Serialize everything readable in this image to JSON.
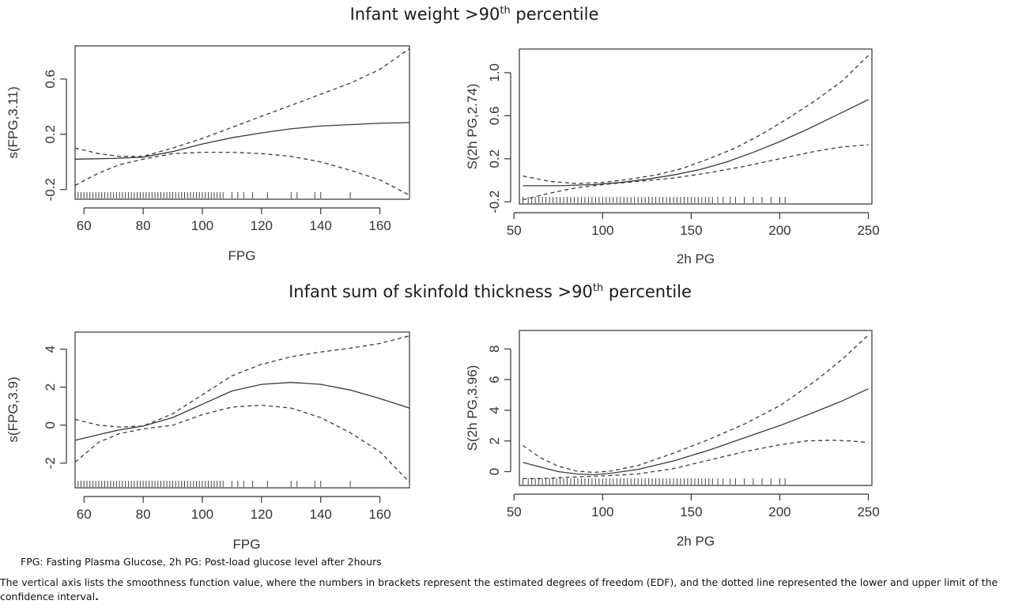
{
  "titles": {
    "top": {
      "text": "Infant weight >90",
      "sup": "th",
      "suffix": " percentile"
    },
    "bottom": {
      "text": "Infant sum of skinfold thickness >90",
      "sup": "th",
      "suffix": " percentile"
    }
  },
  "footnotes": {
    "abbrev": "FPG: Fasting Plasma Glucose,  2h PG: Post-load glucose level after 2hours",
    "explain": "The vertical axis lists the smoothness function value, where the numbers in brackets represent the estimated degrees of freedom (EDF), and the dotted line represented the lower and upper limit of the confidence interval",
    "explain_end": "."
  },
  "chart_data": [
    {
      "id": "p1",
      "type": "line",
      "xlabel": "FPG",
      "ylabel": "s(FPG,3.11)",
      "xlim": [
        57,
        170
      ],
      "ylim": [
        -0.27,
        0.84
      ],
      "xticks": [
        60,
        80,
        100,
        120,
        140,
        160
      ],
      "yticks": [
        -0.2,
        0.2,
        0.6
      ],
      "ytick_labels": [
        "-0.2",
        "0.2",
        "0.6"
      ],
      "series": [
        {
          "style": "solid",
          "x": [
            57,
            70,
            80,
            90,
            100,
            110,
            120,
            130,
            140,
            150,
            160,
            170
          ],
          "y": [
            0.02,
            0.025,
            0.035,
            0.075,
            0.13,
            0.175,
            0.21,
            0.24,
            0.26,
            0.27,
            0.28,
            0.285
          ]
        },
        {
          "style": "dashed",
          "x": [
            57,
            65,
            72,
            80,
            90,
            100,
            110,
            120,
            130,
            140,
            150,
            160,
            170
          ],
          "y": [
            0.1,
            0.06,
            0.04,
            0.04,
            0.1,
            0.17,
            0.25,
            0.33,
            0.41,
            0.49,
            0.57,
            0.67,
            0.82
          ]
        },
        {
          "style": "dashed",
          "x": [
            57,
            65,
            72,
            80,
            90,
            100,
            110,
            120,
            130,
            140,
            150,
            160,
            170
          ],
          "y": [
            -0.17,
            -0.08,
            -0.02,
            0.02,
            0.06,
            0.07,
            0.07,
            0.06,
            0.04,
            0.0,
            -0.06,
            -0.13,
            -0.24
          ]
        }
      ],
      "rug": [
        58,
        59,
        60,
        61,
        62,
        63,
        64,
        65,
        66,
        67,
        68,
        69,
        70,
        71,
        72,
        73,
        74,
        75,
        76,
        77,
        78,
        79,
        80,
        81,
        82,
        83,
        84,
        85,
        86,
        87,
        88,
        89,
        90,
        91,
        92,
        93,
        94,
        95,
        96,
        97,
        98,
        99,
        100,
        101,
        102,
        103,
        104,
        105,
        106,
        107,
        110,
        112,
        114,
        117,
        122,
        130,
        132,
        138,
        140,
        150,
        170
      ]
    },
    {
      "id": "p2",
      "type": "line",
      "xlabel": "2h PG",
      "ylabel": "S(2h PG,2.74)",
      "xlim": [
        53,
        252
      ],
      "ylim": [
        -0.22,
        1.22
      ],
      "xticks": [
        50,
        100,
        150,
        200,
        250
      ],
      "yticks": [
        -0.2,
        0.2,
        0.6,
        1.0
      ],
      "ytick_labels": [
        "-0.2",
        "0.2",
        "0.6",
        "1.0"
      ],
      "series": [
        {
          "style": "solid",
          "x": [
            55,
            75,
            95,
            110,
            125,
            140,
            155,
            170,
            185,
            200,
            215,
            230,
            250
          ],
          "y": [
            -0.05,
            -0.05,
            -0.04,
            -0.02,
            0.01,
            0.05,
            0.1,
            0.17,
            0.26,
            0.36,
            0.47,
            0.59,
            0.75
          ]
        },
        {
          "style": "dashed",
          "x": [
            55,
            70,
            85,
            100,
            115,
            130,
            145,
            160,
            175,
            190,
            205,
            220,
            235,
            250
          ],
          "y": [
            0.04,
            -0.01,
            -0.03,
            -0.02,
            0.01,
            0.05,
            0.11,
            0.2,
            0.3,
            0.43,
            0.58,
            0.74,
            0.92,
            1.16
          ]
        },
        {
          "style": "dashed",
          "x": [
            55,
            70,
            85,
            100,
            120,
            140,
            160,
            180,
            200,
            220,
            235,
            250
          ],
          "y": [
            -0.18,
            -0.12,
            -0.07,
            -0.04,
            -0.01,
            0.02,
            0.07,
            0.13,
            0.2,
            0.27,
            0.31,
            0.33
          ]
        }
      ],
      "rug": [
        55,
        58,
        60,
        62,
        64,
        66,
        68,
        70,
        72,
        74,
        76,
        78,
        80,
        82,
        84,
        86,
        88,
        90,
        92,
        94,
        96,
        98,
        100,
        102,
        104,
        106,
        108,
        110,
        112,
        114,
        116,
        118,
        120,
        122,
        124,
        126,
        128,
        130,
        132,
        134,
        136,
        138,
        140,
        142,
        144,
        146,
        148,
        150,
        152,
        154,
        156,
        158,
        160,
        162,
        165,
        168,
        172,
        175,
        180,
        185,
        190,
        195,
        200,
        203
      ]
    },
    {
      "id": "p3",
      "type": "line",
      "xlabel": "FPG",
      "ylabel": "s(FPG,3.9)",
      "xlim": [
        57,
        170
      ],
      "ylim": [
        -3.3,
        4.9
      ],
      "xticks": [
        60,
        80,
        100,
        120,
        140,
        160
      ],
      "yticks": [
        -2,
        0,
        2,
        4
      ],
      "ytick_labels": [
        "-2",
        "0",
        "2",
        "4"
      ],
      "series": [
        {
          "style": "solid",
          "x": [
            57,
            65,
            72,
            80,
            90,
            100,
            110,
            120,
            130,
            140,
            150,
            160,
            170
          ],
          "y": [
            -0.8,
            -0.5,
            -0.25,
            -0.05,
            0.4,
            1.1,
            1.8,
            2.15,
            2.25,
            2.15,
            1.85,
            1.4,
            0.9
          ]
        },
        {
          "style": "dashed",
          "x": [
            57,
            65,
            72,
            80,
            90,
            100,
            110,
            120,
            130,
            140,
            150,
            160,
            170
          ],
          "y": [
            0.3,
            0.0,
            -0.1,
            -0.05,
            0.6,
            1.6,
            2.6,
            3.2,
            3.6,
            3.85,
            4.05,
            4.3,
            4.7
          ]
        },
        {
          "style": "dashed",
          "x": [
            57,
            65,
            72,
            80,
            90,
            100,
            110,
            120,
            130,
            140,
            150,
            160,
            170
          ],
          "y": [
            -1.95,
            -0.9,
            -0.45,
            -0.2,
            0.0,
            0.55,
            0.95,
            1.05,
            0.9,
            0.4,
            -0.4,
            -1.4,
            -3.0
          ]
        }
      ],
      "rug": [
        58,
        59,
        60,
        61,
        62,
        63,
        64,
        65,
        66,
        67,
        68,
        69,
        70,
        71,
        72,
        73,
        74,
        75,
        76,
        77,
        78,
        79,
        80,
        81,
        82,
        83,
        84,
        85,
        86,
        87,
        88,
        89,
        90,
        91,
        92,
        93,
        94,
        95,
        96,
        97,
        98,
        99,
        100,
        101,
        102,
        103,
        104,
        105,
        106,
        107,
        110,
        112,
        114,
        117,
        122,
        130,
        132,
        138,
        140,
        150,
        170
      ]
    },
    {
      "id": "p4",
      "type": "line",
      "xlabel": "2h PG",
      "ylabel": "S(2h PG,3.96)",
      "xlim": [
        53,
        252
      ],
      "ylim": [
        -0.9,
        9.2
      ],
      "xticks": [
        50,
        100,
        150,
        200,
        250
      ],
      "yticks": [
        0,
        2,
        4,
        6,
        8
      ],
      "ytick_labels": [
        "0",
        "2",
        "4",
        "6",
        "8"
      ],
      "series": [
        {
          "style": "solid",
          "x": [
            55,
            65,
            75,
            85,
            95,
            105,
            120,
            140,
            160,
            180,
            200,
            220,
            235,
            250
          ],
          "y": [
            0.6,
            0.3,
            0.0,
            -0.15,
            -0.2,
            -0.1,
            0.15,
            0.7,
            1.4,
            2.2,
            3.0,
            3.9,
            4.6,
            5.4
          ]
        },
        {
          "style": "dashed",
          "x": [
            55,
            65,
            75,
            85,
            95,
            105,
            120,
            140,
            160,
            180,
            200,
            220,
            235,
            250
          ],
          "y": [
            1.7,
            0.9,
            0.35,
            0.05,
            -0.05,
            0.05,
            0.4,
            1.2,
            2.1,
            3.1,
            4.3,
            5.9,
            7.3,
            8.9
          ]
        },
        {
          "style": "dashed",
          "x": [
            55,
            65,
            75,
            85,
            95,
            105,
            120,
            140,
            160,
            180,
            200,
            215,
            230,
            240,
            250
          ],
          "y": [
            -0.45,
            -0.45,
            -0.4,
            -0.35,
            -0.3,
            -0.25,
            -0.15,
            0.2,
            0.75,
            1.3,
            1.75,
            2.0,
            2.05,
            2.0,
            1.9
          ]
        }
      ],
      "rug": [
        55,
        58,
        60,
        62,
        64,
        66,
        68,
        70,
        72,
        74,
        76,
        78,
        80,
        82,
        84,
        86,
        88,
        90,
        92,
        94,
        96,
        98,
        100,
        102,
        104,
        106,
        108,
        110,
        112,
        114,
        116,
        118,
        120,
        122,
        124,
        126,
        128,
        130,
        132,
        134,
        136,
        138,
        140,
        142,
        144,
        146,
        148,
        150,
        152,
        154,
        156,
        158,
        160,
        162,
        165,
        168,
        172,
        175,
        180,
        185,
        190,
        195,
        200,
        203
      ]
    }
  ]
}
